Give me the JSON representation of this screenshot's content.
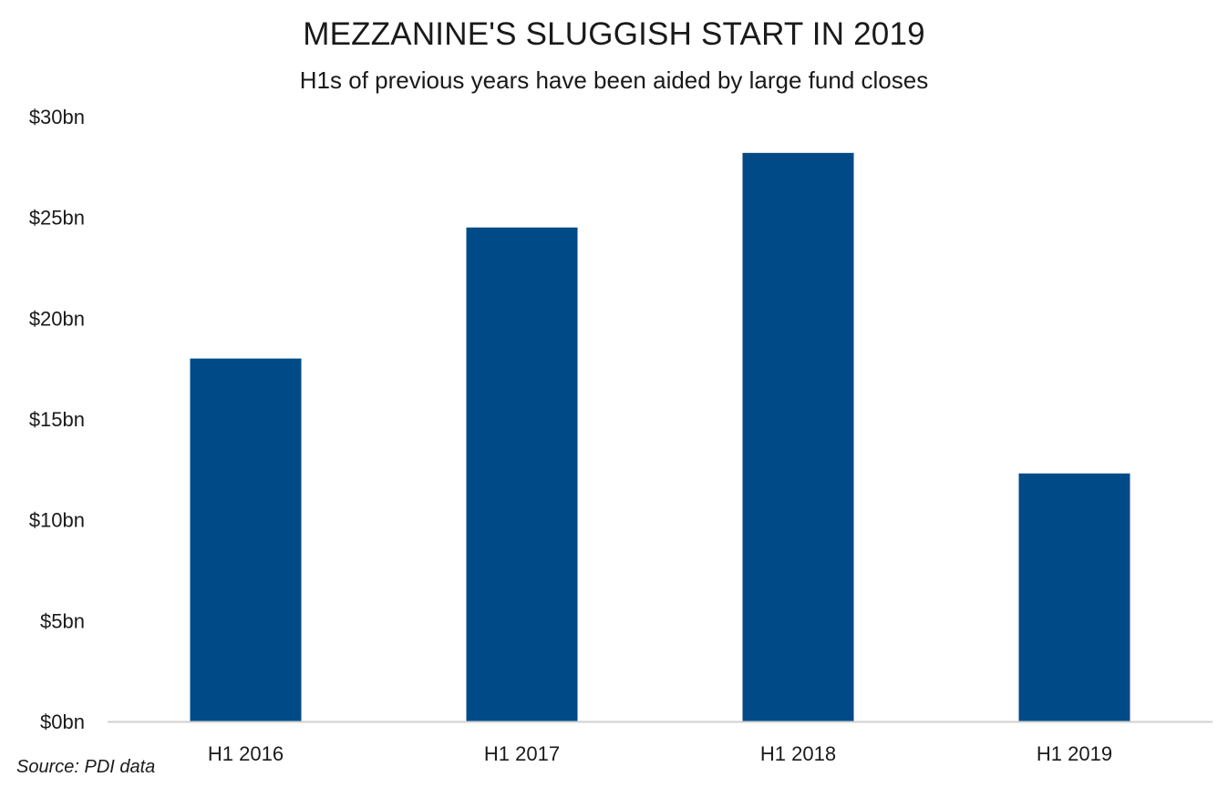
{
  "chart_data": {
    "type": "bar",
    "title": "MEZZANINE'S SLUGGISH START IN 2019",
    "subtitle": "H1s of previous years have been aided by large fund closes",
    "categories": [
      "H1 2016",
      "H1 2017",
      "H1 2018",
      "H1 2019"
    ],
    "values": [
      18.0,
      24.5,
      28.2,
      12.3
    ],
    "y_tick_values": [
      0,
      5,
      10,
      15,
      20,
      25,
      30
    ],
    "y_tick_labels": [
      "$0bn",
      "$5bn",
      "$10bn",
      "$15bn",
      "$20bn",
      "$25bn",
      "$30bn"
    ],
    "ylim": [
      0,
      30
    ],
    "xlabel": "",
    "ylabel": "",
    "grid": false,
    "legend": "none",
    "bar_color": "#004a87",
    "axis_color": "#d0d0d0",
    "source": "Source: PDI data"
  }
}
